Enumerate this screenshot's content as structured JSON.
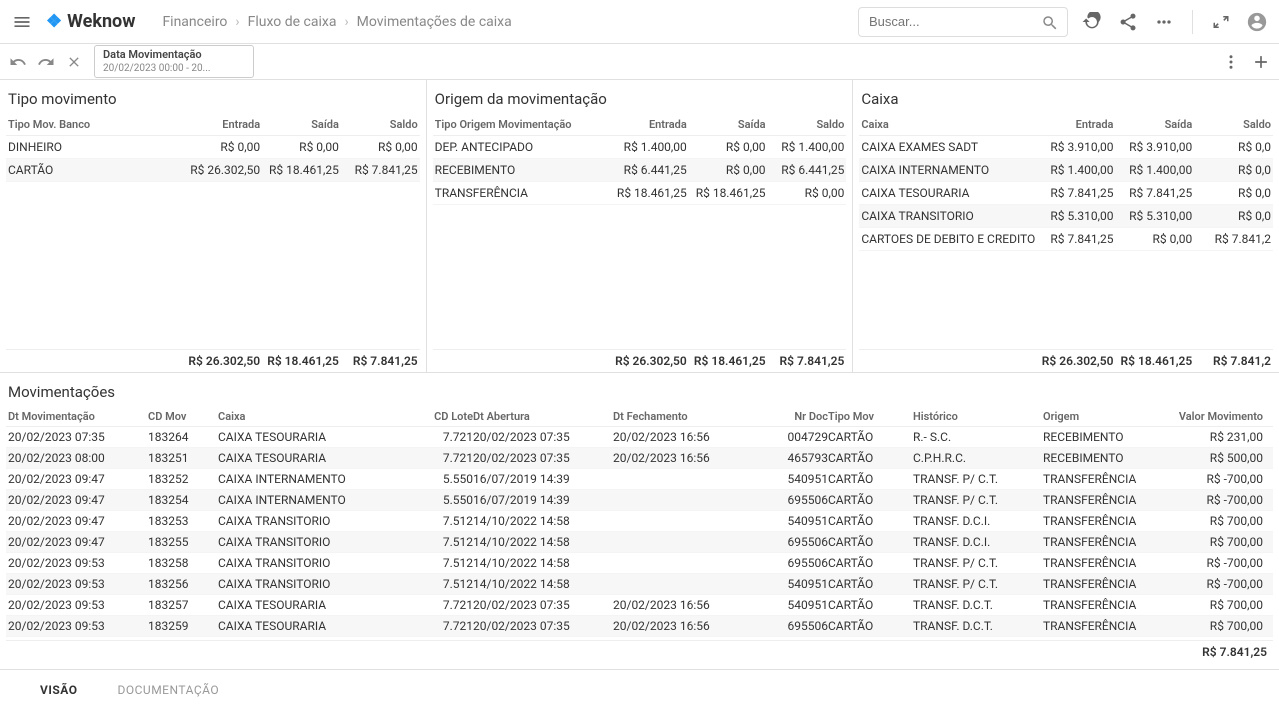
{
  "header": {
    "logo_text": "Weknow",
    "breadcrumb": [
      "Financeiro",
      "Fluxo de caixa",
      "Movimentações de caixa"
    ],
    "search_placeholder": "Buscar..."
  },
  "filter": {
    "chip_title": "Data Movimentação",
    "chip_value": "20/02/2023 00:00 - 20..."
  },
  "panels": {
    "tipo_movimento": {
      "title": "Tipo movimento",
      "header_label": "Tipo Mov. Banco",
      "headers": [
        "Entrada",
        "Saída",
        "Saldo"
      ],
      "rows": [
        {
          "label": "DINHEIRO",
          "entrada": "R$ 0,00",
          "saida": "R$ 0,00",
          "saldo": "R$ 0,00"
        },
        {
          "label": "CARTÃO",
          "entrada": "R$ 26.302,50",
          "saida": "R$ 18.461,25",
          "saldo": "R$ 7.841,25"
        }
      ],
      "footer": {
        "entrada": "R$ 26.302,50",
        "saida": "R$ 18.461,25",
        "saldo": "R$ 7.841,25"
      }
    },
    "origem": {
      "title": "Origem da movimentação",
      "header_label": "Tipo Origem Movimentação",
      "headers": [
        "Entrada",
        "Saída",
        "Saldo"
      ],
      "rows": [
        {
          "label": "DEP. ANTECIPADO",
          "entrada": "R$ 1.400,00",
          "saida": "R$ 0,00",
          "saldo": "R$ 1.400,00"
        },
        {
          "label": "RECEBIMENTO",
          "entrada": "R$ 6.441,25",
          "saida": "R$ 0,00",
          "saldo": "R$ 6.441,25"
        },
        {
          "label": "TRANSFERÊNCIA",
          "entrada": "R$ 18.461,25",
          "saida": "R$ 18.461,25",
          "saldo": "R$ 0,00"
        }
      ],
      "footer": {
        "entrada": "R$ 26.302,50",
        "saida": "R$ 18.461,25",
        "saldo": "R$ 7.841,25"
      }
    },
    "caixa": {
      "title": "Caixa",
      "header_label": "Caixa",
      "headers": [
        "Entrada",
        "Saída",
        "Saldo"
      ],
      "rows": [
        {
          "label": "CAIXA EXAMES SADT",
          "entrada": "R$ 3.910,00",
          "saida": "R$ 3.910,00",
          "saldo": "R$ 0,0"
        },
        {
          "label": "CAIXA INTERNAMENTO",
          "entrada": "R$ 1.400,00",
          "saida": "R$ 1.400,00",
          "saldo": "R$ 0,0"
        },
        {
          "label": "CAIXA TESOURARIA",
          "entrada": "R$ 7.841,25",
          "saida": "R$ 7.841,25",
          "saldo": "R$ 0,0"
        },
        {
          "label": "CAIXA TRANSITORIO",
          "entrada": "R$ 5.310,00",
          "saida": "R$ 5.310,00",
          "saldo": "R$ 0,0"
        },
        {
          "label": "CARTOES DE DEBITO E CREDITO",
          "entrada": "R$ 7.841,25",
          "saida": "R$ 0,00",
          "saldo": "R$ 7.841,2"
        }
      ],
      "footer": {
        "entrada": "R$ 26.302,50",
        "saida": "R$ 18.461,25",
        "saldo": "R$ 7.841,2"
      }
    }
  },
  "movim": {
    "title": "Movimentações",
    "headers": [
      "Dt Movimentação",
      "CD Mov",
      "Caixa",
      "CD Lote",
      "Dt Abertura",
      "Dt Fechamento",
      "Nr Doc",
      "Tipo Mov",
      "Histórico",
      "Origem",
      "Valor Movimento"
    ],
    "rows": [
      {
        "dt": "20/02/2023 07:35",
        "cd": "183264",
        "caixa": "CAIXA TESOURARIA",
        "lote": "7.721",
        "abert": "20/02/2023 07:35",
        "fech": "20/02/2023 16:56",
        "nr": "004729",
        "tipo": "CARTÃO",
        "hist": "R.- S.C.",
        "orig": "RECEBIMENTO",
        "valor": "R$ 231,00"
      },
      {
        "dt": "20/02/2023 08:00",
        "cd": "183251",
        "caixa": "CAIXA TESOURARIA",
        "lote": "7.721",
        "abert": "20/02/2023 07:35",
        "fech": "20/02/2023 16:56",
        "nr": "465793",
        "tipo": "CARTÃO",
        "hist": "C.P.H.R.C.",
        "orig": "RECEBIMENTO",
        "valor": "R$ 500,00"
      },
      {
        "dt": "20/02/2023 09:47",
        "cd": "183252",
        "caixa": "CAIXA INTERNAMENTO",
        "lote": "5.550",
        "abert": "16/07/2019 14:39",
        "fech": "",
        "nr": "540951",
        "tipo": "CARTÃO",
        "hist": "TRANSF. P/ C.T.",
        "orig": "TRANSFERÊNCIA",
        "valor": "R$ -700,00"
      },
      {
        "dt": "20/02/2023 09:47",
        "cd": "183254",
        "caixa": "CAIXA INTERNAMENTO",
        "lote": "5.550",
        "abert": "16/07/2019 14:39",
        "fech": "",
        "nr": "695506",
        "tipo": "CARTÃO",
        "hist": "TRANSF. P/ C.T.",
        "orig": "TRANSFERÊNCIA",
        "valor": "R$ -700,00"
      },
      {
        "dt": "20/02/2023 09:47",
        "cd": "183253",
        "caixa": "CAIXA TRANSITORIO",
        "lote": "7.512",
        "abert": "14/10/2022 14:58",
        "fech": "",
        "nr": "540951",
        "tipo": "CARTÃO",
        "hist": "TRANSF. D.C.I.",
        "orig": "TRANSFERÊNCIA",
        "valor": "R$ 700,00"
      },
      {
        "dt": "20/02/2023 09:47",
        "cd": "183255",
        "caixa": "CAIXA TRANSITORIO",
        "lote": "7.512",
        "abert": "14/10/2022 14:58",
        "fech": "",
        "nr": "695506",
        "tipo": "CARTÃO",
        "hist": "TRANSF. D.C.I.",
        "orig": "TRANSFERÊNCIA",
        "valor": "R$ 700,00"
      },
      {
        "dt": "20/02/2023 09:53",
        "cd": "183258",
        "caixa": "CAIXA TRANSITORIO",
        "lote": "7.512",
        "abert": "14/10/2022 14:58",
        "fech": "",
        "nr": "695506",
        "tipo": "CARTÃO",
        "hist": "TRANSF. P/ C.T.",
        "orig": "TRANSFERÊNCIA",
        "valor": "R$ -700,00"
      },
      {
        "dt": "20/02/2023 09:53",
        "cd": "183256",
        "caixa": "CAIXA TRANSITORIO",
        "lote": "7.512",
        "abert": "14/10/2022 14:58",
        "fech": "",
        "nr": "540951",
        "tipo": "CARTÃO",
        "hist": "TRANSF. P/ C.T.",
        "orig": "TRANSFERÊNCIA",
        "valor": "R$ -700,00"
      },
      {
        "dt": "20/02/2023 09:53",
        "cd": "183257",
        "caixa": "CAIXA TESOURARIA",
        "lote": "7.721",
        "abert": "20/02/2023 07:35",
        "fech": "20/02/2023 16:56",
        "nr": "540951",
        "tipo": "CARTÃO",
        "hist": "TRANSF. D.C.T.",
        "orig": "TRANSFERÊNCIA",
        "valor": "R$ 700,00"
      },
      {
        "dt": "20/02/2023 09:53",
        "cd": "183259",
        "caixa": "CAIXA TESOURARIA",
        "lote": "7.721",
        "abert": "20/02/2023 07:35",
        "fech": "20/02/2023 16:56",
        "nr": "695506",
        "tipo": "CARTÃO",
        "hist": "TRANSF. D.C.T.",
        "orig": "TRANSFERÊNCIA",
        "valor": "R$ 700,00"
      }
    ],
    "total": "R$ 7.841,25"
  },
  "tabs": {
    "visao": "VISÃO",
    "documentacao": "DOCUMENTAÇÃO"
  }
}
